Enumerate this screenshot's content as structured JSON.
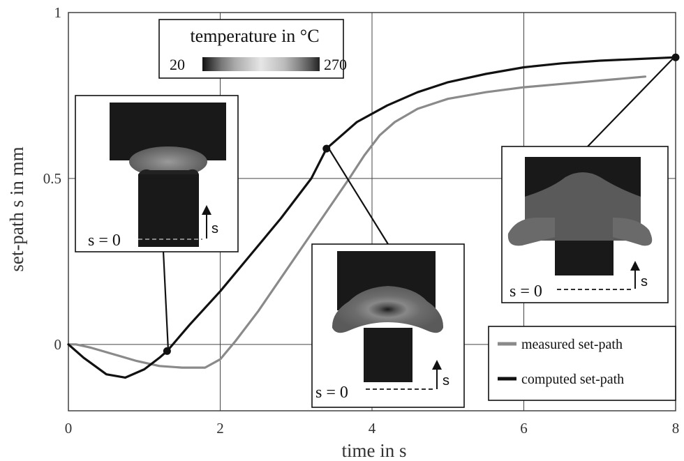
{
  "chart_data": {
    "type": "line",
    "title": "",
    "xlabel": "time in s",
    "ylabel": "set-path s in mm",
    "xlim": [
      0,
      8
    ],
    "ylim": [
      -0.2,
      1
    ],
    "x_ticks": [
      "0",
      "2",
      "4",
      "6",
      "8"
    ],
    "x_tick_values": [
      0,
      2,
      4,
      6,
      8
    ],
    "y_ticks": [
      "0",
      "0.5",
      "1"
    ],
    "y_tick_values": [
      0,
      0.5,
      1
    ],
    "grid": true,
    "legend_position": "bottom-right",
    "series": [
      {
        "name": "measured set-path",
        "color": "#8a8a8a",
        "x": [
          0,
          0.1,
          0.3,
          0.6,
          0.9,
          1.2,
          1.5,
          1.8,
          2.0,
          2.2,
          2.5,
          2.8,
          3.1,
          3.4,
          3.7,
          3.9,
          4.1,
          4.3,
          4.6,
          5.0,
          5.5,
          6.0,
          6.5,
          7.0,
          7.5,
          7.6
        ],
        "y": [
          0,
          0.0,
          -0.01,
          -0.03,
          -0.05,
          -0.065,
          -0.07,
          -0.07,
          -0.045,
          0.01,
          0.1,
          0.2,
          0.3,
          0.4,
          0.5,
          0.57,
          0.63,
          0.67,
          0.71,
          0.74,
          0.76,
          0.775,
          0.785,
          0.795,
          0.805,
          0.807
        ]
      },
      {
        "name": "computed set-path",
        "color": "#111111",
        "x": [
          0,
          0.2,
          0.5,
          0.75,
          1.0,
          1.2,
          1.3,
          1.6,
          2.0,
          2.4,
          2.8,
          3.2,
          3.4,
          3.8,
          4.2,
          4.6,
          5.0,
          5.5,
          6.0,
          6.5,
          7.0,
          7.5,
          8.0
        ],
        "y": [
          0,
          -0.04,
          -0.09,
          -0.1,
          -0.075,
          -0.04,
          -0.02,
          0.06,
          0.16,
          0.27,
          0.38,
          0.5,
          0.59,
          0.67,
          0.72,
          0.76,
          0.79,
          0.815,
          0.835,
          0.847,
          0.855,
          0.86,
          0.865
        ]
      }
    ],
    "markers": [
      {
        "x": 1.3,
        "y": -0.02
      },
      {
        "x": 3.4,
        "y": 0.59
      },
      {
        "x": 8.0,
        "y": 0.865
      }
    ],
    "colorbar": {
      "title": "temperature in °C",
      "min_label": "20",
      "max_label": "270"
    },
    "insets": [
      {
        "label": "s = 0",
        "arrow_label": "s"
      },
      {
        "label": "s = 0",
        "arrow_label": "s"
      },
      {
        "label": "s = 0",
        "arrow_label": "s"
      }
    ]
  }
}
